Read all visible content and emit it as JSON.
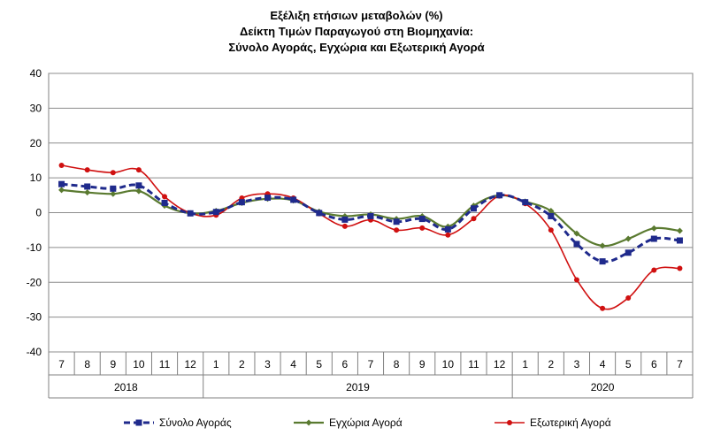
{
  "chart_data": {
    "type": "line",
    "title": [
      "Εξέλιξη ετήσιων μεταβολών (%)",
      "Δείκτη Τιμών Παραγωγού στη Βιομηχανία:",
      "Σύνολο Αγοράς, Εγχώρια και Εξωτερική Αγορά"
    ],
    "ylim": [
      -40,
      40
    ],
    "yticks": [
      "40",
      "30",
      "20",
      "10",
      "0",
      "-10",
      "-20",
      "-30",
      "-40"
    ],
    "grid": true,
    "legend_position": "bottom",
    "categories": [
      "7",
      "8",
      "9",
      "10",
      "11",
      "12",
      "1",
      "2",
      "3",
      "4",
      "5",
      "6",
      "7",
      "8",
      "9",
      "10",
      "11",
      "12",
      "1",
      "2",
      "3",
      "4",
      "5",
      "6",
      "7"
    ],
    "years": [
      {
        "label": "2018",
        "from": 0,
        "to": 5
      },
      {
        "label": "2019",
        "from": 6,
        "to": 17
      },
      {
        "label": "2020",
        "from": 18,
        "to": 24
      }
    ],
    "series": [
      {
        "name": "Σύνολο Αγοράς",
        "color": "#1f2a8c",
        "style": "dashed-square",
        "values": [
          8.2,
          7.5,
          6.9,
          7.8,
          2.8,
          -0.2,
          0.2,
          3.0,
          4.3,
          3.7,
          -0.1,
          -2.0,
          -1.0,
          -2.6,
          -1.8,
          -4.8,
          1.2,
          5.0,
          3.0,
          -1.0,
          -9.0,
          -14.0,
          -11.5,
          -7.5,
          -8.0
        ]
      },
      {
        "name": "Εγχώρια Αγορά",
        "color": "#5a7a30",
        "style": "solid-diamond",
        "values": [
          6.5,
          5.8,
          5.4,
          6.2,
          2.0,
          -0.2,
          0.5,
          2.8,
          4.0,
          3.5,
          0.3,
          -1.0,
          -0.5,
          -1.8,
          -1.0,
          -4.0,
          2.0,
          5.0,
          3.2,
          0.5,
          -6.0,
          -9.5,
          -7.5,
          -4.5,
          -5.2
        ]
      },
      {
        "name": "Εξωτερική Αγορά",
        "color": "#d01010",
        "style": "solid-circle",
        "values": [
          13.6,
          12.3,
          11.5,
          12.3,
          4.6,
          -0.1,
          -0.7,
          4.2,
          5.4,
          4.2,
          -0.3,
          -3.9,
          -2.1,
          -5.0,
          -4.4,
          -6.4,
          -1.7,
          4.8,
          2.6,
          -5.0,
          -19.3,
          -27.5,
          -24.5,
          -16.5,
          -16.0
        ]
      }
    ]
  }
}
